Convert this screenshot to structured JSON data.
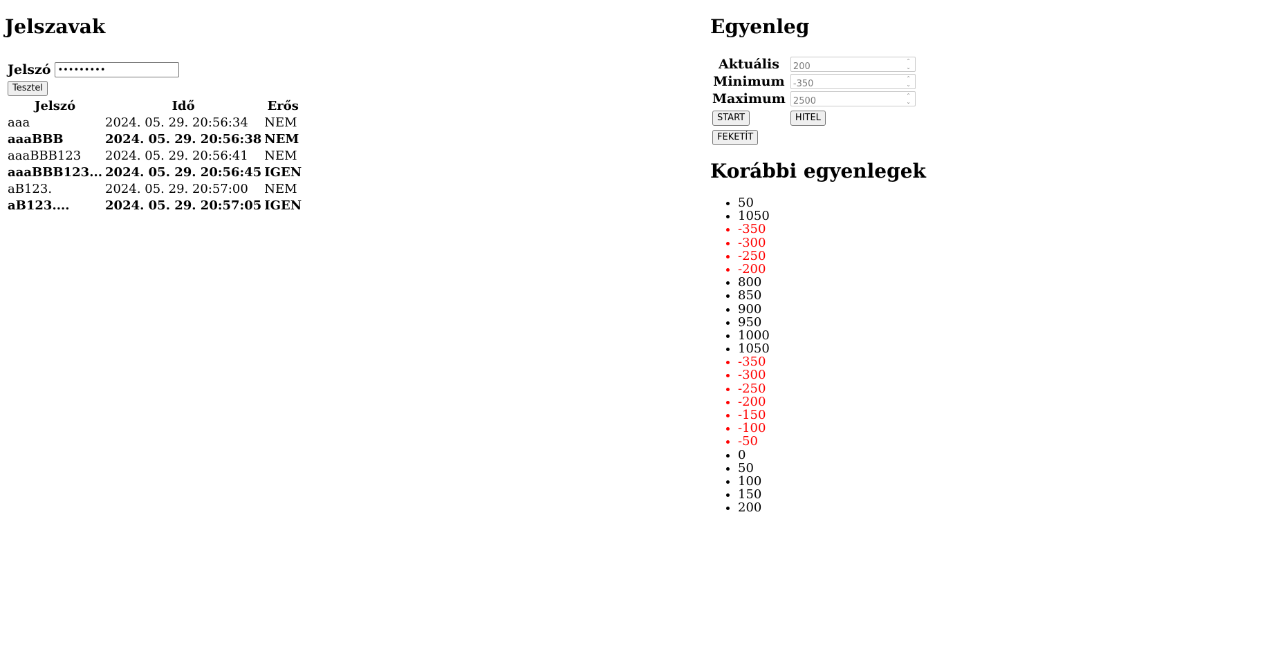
{
  "passwords": {
    "title": "Jelszavak",
    "input_label": "Jelszó",
    "input_value": "aB123....",
    "test_button": "Tesztel",
    "headers": [
      "Jelszó",
      "Idő",
      "Erős"
    ],
    "rows": [
      {
        "password": "aaa",
        "time": "2024. 05. 29. 20:56:34",
        "strong": "NEM",
        "bold": false
      },
      {
        "password": "aaaBBB",
        "time": "2024. 05. 29. 20:56:38",
        "strong": "NEM",
        "bold": true
      },
      {
        "password": "aaaBBB123",
        "time": "2024. 05. 29. 20:56:41",
        "strong": "NEM",
        "bold": false
      },
      {
        "password": "aaaBBB123...",
        "time": "2024. 05. 29. 20:56:45",
        "strong": "IGEN",
        "bold": true
      },
      {
        "password": "aB123.",
        "time": "2024. 05. 29. 20:57:00",
        "strong": "NEM",
        "bold": false
      },
      {
        "password": "aB123....",
        "time": "2024. 05. 29. 20:57:05",
        "strong": "IGEN",
        "bold": true
      }
    ]
  },
  "balance": {
    "title": "Egyenleg",
    "current_label": "Aktuális",
    "current_value": "200",
    "min_label": "Minimum",
    "min_value": "-350",
    "max_label": "Maximum",
    "max_value": "2500",
    "start_button": "START",
    "credit_button": "HITEL",
    "blacken_button": "FEKETÍT"
  },
  "history": {
    "title": "Korábbi egyenlegek",
    "values": [
      "50",
      "1050",
      "-350",
      "-300",
      "-250",
      "-200",
      "800",
      "850",
      "900",
      "950",
      "1000",
      "1050",
      "-350",
      "-300",
      "-250",
      "-200",
      "-150",
      "-100",
      "-50",
      "0",
      "50",
      "100",
      "150",
      "200"
    ]
  },
  "colors": {
    "negative": "#ff0000"
  }
}
